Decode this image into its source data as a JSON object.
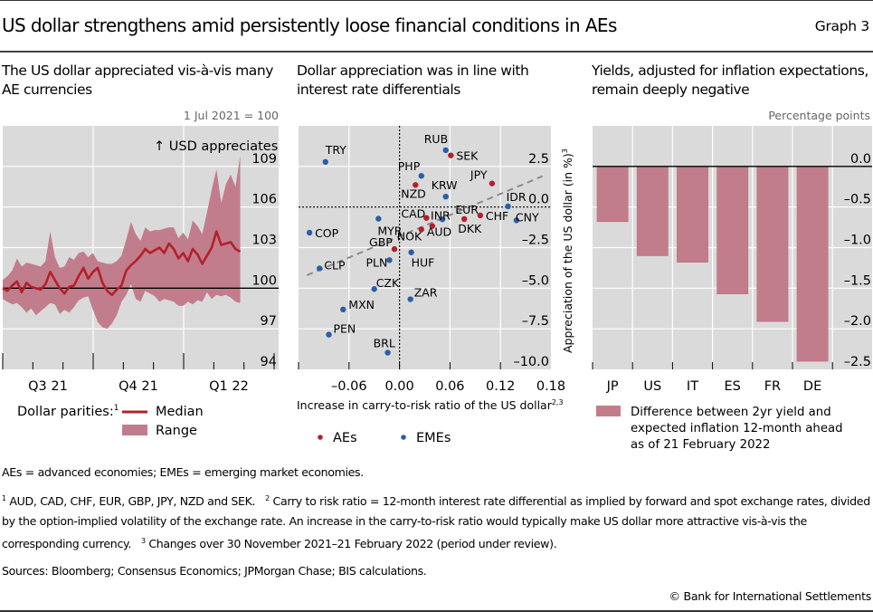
{
  "header": {
    "title": "US dollar strengthens amid persistently loose financial conditions in AEs",
    "graph_label": "Graph 3"
  },
  "chart_data": [
    {
      "type": "area",
      "title": "The US dollar appreciated vis-à-vis many AE currencies",
      "unit_label": "1 Jul 2021 = 100",
      "annotation": "↑ USD appreciates",
      "xlabel": "",
      "ylabel": "",
      "x_range": [
        "2021-07-01",
        "2022-03-31"
      ],
      "x_tick_labels": [
        "Q3 21",
        "Q4 21",
        "Q1 22"
      ],
      "ylim": [
        94,
        112
      ],
      "y_ticks": [
        94,
        97,
        100,
        103,
        106,
        109
      ],
      "y_tick_labels": [
        "94",
        "97",
        "100",
        "103",
        "106",
        "109"
      ],
      "reference_line": 100,
      "legend_title": "Dollar parities:",
      "legend_title_sup": "1",
      "legend": [
        "Median",
        "Range"
      ],
      "series_dates_note": "approx. weekly values, 1 Jul 2021 – 21 Feb 2022",
      "series": [
        {
          "name": "Median",
          "values": [
            100.0,
            99.8,
            100.2,
            100.5,
            99.7,
            100.4,
            100.1,
            100.0,
            99.9,
            100.3,
            101.2,
            100.6,
            100.0,
            99.6,
            100.1,
            100.2,
            100.9,
            101.5,
            100.7,
            101.2,
            101.5,
            100.4,
            99.8,
            99.5,
            99.9,
            100.2,
            101.3,
            101.7,
            102.0,
            102.4,
            102.9,
            102.6,
            102.8,
            103.0,
            102.6,
            103.3,
            102.9,
            102.2,
            102.6,
            102.0,
            102.9,
            102.5,
            101.8,
            102.4,
            103.0,
            104.2,
            103.2,
            103.3,
            103.4,
            102.9,
            102.7
          ]
        },
        {
          "name": "Range",
          "low": [
            99.2,
            99.0,
            98.8,
            98.9,
            98.6,
            98.2,
            98.5,
            98.0,
            98.3,
            98.6,
            98.9,
            98.8,
            98.1,
            98.4,
            98.2,
            98.6,
            99.1,
            99.3,
            99.4,
            98.4,
            97.5,
            97.1,
            97.0,
            97.4,
            98.0,
            99.0,
            99.5,
            100.3,
            99.2,
            99.0,
            99.8,
            99.6,
            99.4,
            99.0,
            99.2,
            99.1,
            99.0,
            98.7,
            98.7,
            99.0,
            98.8,
            99.1,
            99.0,
            99.7,
            99.2,
            99.5,
            99.4,
            99.5,
            99.3,
            99.0,
            98.9
          ],
          "high": [
            100.6,
            100.9,
            101.3,
            102.2,
            101.6,
            101.9,
            101.8,
            101.7,
            101.6,
            102.0,
            104.2,
            102.3,
            101.5,
            101.6,
            102.3,
            102.1,
            102.6,
            102.7,
            102.3,
            102.6,
            102.0,
            101.9,
            101.8,
            101.8,
            102.0,
            102.4,
            103.6,
            104.9,
            104.0,
            103.5,
            104.5,
            104.2,
            104.3,
            104.3,
            104.4,
            104.5,
            104.5,
            103.7,
            104.1,
            103.6,
            105.0,
            104.6,
            104.0,
            105.6,
            107.3,
            108.8,
            106.3,
            107.7,
            108.4,
            107.5,
            109.8
          ]
        }
      ]
    },
    {
      "type": "scatter",
      "title": "Dollar appreciation was in line with interest rate differentials",
      "xlabel": "Increase in carry-to-risk ratio of the US dollar",
      "xlabel_sup": "2,3",
      "ylabel": "Appreciation of the US dollar (in %)",
      "ylabel_sup": "3",
      "xlim": [
        -0.12,
        0.18
      ],
      "ylim": [
        -10,
        5
      ],
      "x_ticks": [
        -0.12,
        -0.06,
        0.0,
        0.06,
        0.12,
        0.18
      ],
      "x_tick_labels": [
        "",
        "–0.06",
        "0.00",
        "0.06",
        "0.12",
        "0.18"
      ],
      "y_ticks": [
        -10,
        -7.5,
        -5,
        -2.5,
        0,
        2.5
      ],
      "y_tick_labels": [
        "–10.0",
        "–7.5",
        "–5.0",
        "–2.5",
        "0.0",
        "2.5"
      ],
      "reference_lines": {
        "x": 0,
        "y": 0
      },
      "trend_line": {
        "x": [
          -0.11,
          0.17
        ],
        "y": [
          -4.2,
          1.9
        ],
        "style": "dashed"
      },
      "legend": [
        {
          "name": "AEs",
          "color": "#b3202a"
        },
        {
          "name": "EMEs",
          "color": "#2a5ea8"
        }
      ],
      "points": [
        {
          "label": "TRY",
          "group": "EMEs",
          "x": -0.088,
          "y": 2.78
        },
        {
          "label": "RUB",
          "group": "EMEs",
          "x": 0.055,
          "y": 3.5
        },
        {
          "label": "SEK",
          "group": "AEs",
          "x": 0.061,
          "y": 3.18
        },
        {
          "label": "PHP",
          "group": "EMEs",
          "x": 0.026,
          "y": 1.92
        },
        {
          "label": "NZD",
          "group": "AEs",
          "x": 0.019,
          "y": 1.36
        },
        {
          "label": "KRW",
          "group": "EMEs",
          "x": 0.055,
          "y": 0.64
        },
        {
          "label": "JPY",
          "group": "AEs",
          "x": 0.11,
          "y": 1.45
        },
        {
          "label": "IDR",
          "group": "EMEs",
          "x": 0.129,
          "y": 0.04
        },
        {
          "label": "CNY",
          "group": "EMEs",
          "x": 0.139,
          "y": -0.82
        },
        {
          "label": "CHF",
          "group": "AEs",
          "x": 0.096,
          "y": -0.52
        },
        {
          "label": "EUR",
          "group": "AEs",
          "x": 0.077,
          "y": -0.74
        },
        {
          "label": "DKK",
          "group": "AEs",
          "x": 0.077,
          "y": -0.74
        },
        {
          "label": "CAD",
          "group": "AEs",
          "x": 0.032,
          "y": -0.67
        },
        {
          "label": "INR",
          "group": "EMEs",
          "x": 0.051,
          "y": -0.76
        },
        {
          "label": "AUD",
          "group": "AEs",
          "x": 0.039,
          "y": -1.17
        },
        {
          "label": "NOK",
          "group": "AEs",
          "x": 0.026,
          "y": -1.38
        },
        {
          "label": "MYR",
          "group": "EMEs",
          "x": -0.025,
          "y": -0.72
        },
        {
          "label": "COP",
          "group": "EMEs",
          "x": -0.107,
          "y": -1.58
        },
        {
          "label": "GBP",
          "group": "AEs",
          "x": -0.006,
          "y": -2.59
        },
        {
          "label": "HUF",
          "group": "EMEs",
          "x": 0.014,
          "y": -2.79
        },
        {
          "label": "PLN",
          "group": "EMEs",
          "x": -0.012,
          "y": -3.27
        },
        {
          "label": "CLP",
          "group": "EMEs",
          "x": -0.095,
          "y": -3.78
        },
        {
          "label": "CZK",
          "group": "EMEs",
          "x": -0.03,
          "y": -5.05
        },
        {
          "label": "ZAR",
          "group": "EMEs",
          "x": 0.013,
          "y": -5.68
        },
        {
          "label": "MXN",
          "group": "EMEs",
          "x": -0.067,
          "y": -6.31
        },
        {
          "label": "PEN",
          "group": "EMEs",
          "x": -0.084,
          "y": -7.86
        },
        {
          "label": "BRL",
          "group": "EMEs",
          "x": -0.014,
          "y": -8.97
        }
      ]
    },
    {
      "type": "bar",
      "title": "Yields, adjusted for inflation expectations, remain deeply negative",
      "unit_label": "Percentage points",
      "categories": [
        "JP",
        "US",
        "IT",
        "ES",
        "FR",
        "DE"
      ],
      "values": [
        -0.68,
        -1.1,
        -1.18,
        -1.57,
        -1.91,
        -2.4
      ],
      "xlabel": "",
      "ylabel": "",
      "ylim": [
        -2.5,
        0.5
      ],
      "y_ticks": [
        -2.5,
        -2.0,
        -1.5,
        -1.0,
        -0.5,
        0.0
      ],
      "y_tick_labels": [
        "–2.5",
        "–2.0",
        "–1.5",
        "–1.0",
        "–0.5",
        "0.0"
      ],
      "legend": [
        "Difference between 2yr yield and expected inflation 12-month ahead as of 21 February 2022"
      ],
      "legend_lines": [
        "Difference between 2yr yield and",
        "expected inflation 12-month ahead",
        "as of 21 February 2022"
      ]
    }
  ],
  "colors": {
    "plot_bg": "#dadada",
    "grid": "#ffffff",
    "median_line": "#b3202a",
    "range_fill": "#c27d8c",
    "bar_fill": "#c27d8c",
    "ae_dot": "#b3202a",
    "eme_dot": "#2a5ea8",
    "trend": "#8c8c8c"
  },
  "footer": {
    "abbreviations": "AEs = advanced economies; EMEs = emerging market economies.",
    "note1_num": "1",
    "note1": " AUD, CAD, CHF, EUR, GBP, JPY, NZD and SEK.",
    "note2_num": "2",
    "note2": " Carry to risk ratio = 12-month interest rate differential as implied by forward and spot exchange rates, divided by the option-implied volatility of the exchange rate. An increase in the carry-to-risk ratio would typically make US dollar more attractive vis-à-vis the corresponding currency.",
    "note3_num": "3",
    "note3": " Changes over 30 November 2021–21 February 2022 (period under review).",
    "sources": "Sources: Bloomberg; Consensus Economics; JPMorgan Chase; BIS calculations.",
    "copyright": "© Bank for International Settlements"
  }
}
